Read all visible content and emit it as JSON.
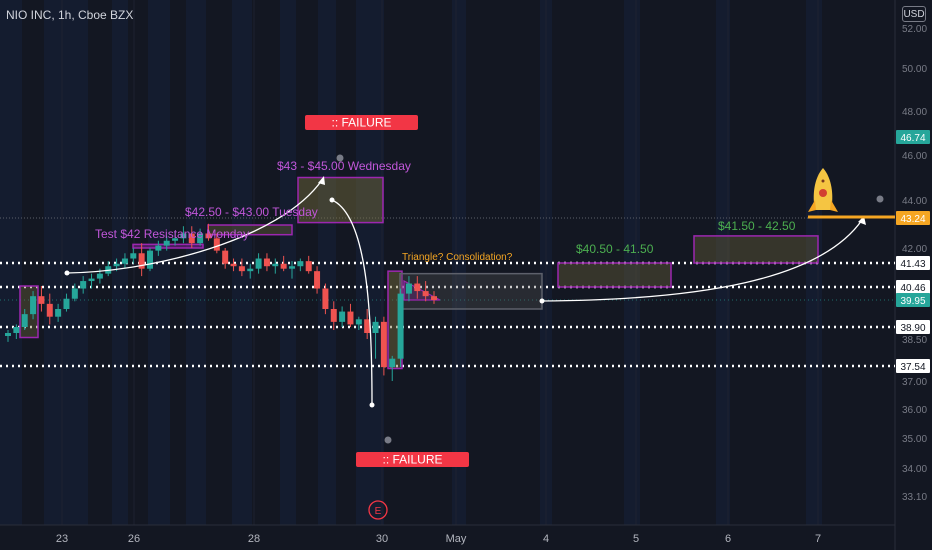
{
  "header": {
    "symbol_title": "NIO INC, 1h, Cboe BZX"
  },
  "currency_button": "USD",
  "colors": {
    "up": "#26a69a",
    "down": "#ef5350",
    "purple": "#9c27b0",
    "orange": "#f5a623",
    "failure": "#f23645"
  },
  "annotations": {
    "failure_label": ":: FAILURE",
    "resistance_monday": "Test $42 Resistance Monday",
    "tuesday_target": "$42.50 - $43.00 Tuesday",
    "wednesday_target": "$43 - $45.00 Wednesday",
    "triangle_note": "Triangle? Consolidation?",
    "zone_1": "$40.50 - 41.50",
    "zone_2": "$41.50 - 42.50",
    "earnings_marker": "E",
    "rocket_icon": "rocket-icon"
  },
  "chart_data": {
    "type": "candlestick",
    "symbol": "NIO INC",
    "interval": "1h",
    "exchange": "Cboe BZX",
    "currency": "USD",
    "ylim": [
      32.5,
      52.0
    ],
    "x_ticks": [
      "23",
      "26",
      "28",
      "30",
      "May",
      "4",
      "5",
      "6",
      "7"
    ],
    "y_ticks": [
      "52.00",
      "50.00",
      "48.00",
      "46.00",
      "44.00",
      "42.00",
      "38.50",
      "37.00",
      "36.00",
      "35.00",
      "34.00",
      "33.10"
    ],
    "price_labels": [
      {
        "label": "46.74",
        "value": 46.74,
        "color": "#26a69a"
      },
      {
        "label": "43.24",
        "value": 43.24,
        "color": "#f5a623"
      },
      {
        "label": "41.43",
        "value": 41.43,
        "color": "#ffffff"
      },
      {
        "label": "40.46",
        "value": 40.46,
        "color": "#ffffff"
      },
      {
        "label": "39.95",
        "value": 39.95,
        "color": "#26a69a"
      },
      {
        "label": "38.90",
        "value": 38.9,
        "color": "#ffffff"
      },
      {
        "label": "37.54",
        "value": 37.54,
        "color": "#ffffff"
      }
    ],
    "horizontal_levels": [
      41.43,
      40.46,
      38.9,
      37.54
    ],
    "target_level": 43.24,
    "candles": [
      [
        38.6,
        38.8,
        38.4,
        38.7
      ],
      [
        38.7,
        39.0,
        38.5,
        38.9
      ],
      [
        38.9,
        39.6,
        38.8,
        39.4
      ],
      [
        39.4,
        40.3,
        39.2,
        40.1
      ],
      [
        40.1,
        40.5,
        39.5,
        39.8
      ],
      [
        39.8,
        40.2,
        39.0,
        39.3
      ],
      [
        39.3,
        39.8,
        39.1,
        39.6
      ],
      [
        39.6,
        40.2,
        39.5,
        40.0
      ],
      [
        40.0,
        40.6,
        39.9,
        40.4
      ],
      [
        40.4,
        40.9,
        40.2,
        40.7
      ],
      [
        40.7,
        41.0,
        40.4,
        40.8
      ],
      [
        40.8,
        41.2,
        40.6,
        41.0
      ],
      [
        41.0,
        41.5,
        40.9,
        41.3
      ],
      [
        41.3,
        41.6,
        41.1,
        41.4
      ],
      [
        41.4,
        41.8,
        41.2,
        41.6
      ],
      [
        41.6,
        42.0,
        41.4,
        41.8
      ],
      [
        41.8,
        42.2,
        40.9,
        41.2
      ],
      [
        41.2,
        42.0,
        41.1,
        41.9
      ],
      [
        41.9,
        42.3,
        41.7,
        42.1
      ],
      [
        42.1,
        42.5,
        41.9,
        42.3
      ],
      [
        42.3,
        42.7,
        42.1,
        42.4
      ],
      [
        42.4,
        42.9,
        42.2,
        42.6
      ],
      [
        42.6,
        42.9,
        42.0,
        42.2
      ],
      [
        42.2,
        42.8,
        42.1,
        42.6
      ],
      [
        42.6,
        43.0,
        42.3,
        42.4
      ],
      [
        42.4,
        42.6,
        41.8,
        41.9
      ],
      [
        41.9,
        42.0,
        41.2,
        41.4
      ],
      [
        41.4,
        41.6,
        41.1,
        41.3
      ],
      [
        41.3,
        41.6,
        40.9,
        41.1
      ],
      [
        41.1,
        41.4,
        40.8,
        41.2
      ],
      [
        41.2,
        41.8,
        41.0,
        41.6
      ],
      [
        41.6,
        41.8,
        41.1,
        41.3
      ],
      [
        41.3,
        41.6,
        41.0,
        41.4
      ],
      [
        41.4,
        41.7,
        41.1,
        41.2
      ],
      [
        41.2,
        41.5,
        40.8,
        41.3
      ],
      [
        41.3,
        41.6,
        41.1,
        41.5
      ],
      [
        41.5,
        41.7,
        41.0,
        41.1
      ],
      [
        41.1,
        41.3,
        40.2,
        40.4
      ],
      [
        40.4,
        40.6,
        39.4,
        39.6
      ],
      [
        39.6,
        39.9,
        38.8,
        39.1
      ],
      [
        39.1,
        39.7,
        38.9,
        39.5
      ],
      [
        39.5,
        39.8,
        38.9,
        39.0
      ],
      [
        39.0,
        39.3,
        38.8,
        39.2
      ],
      [
        39.2,
        39.6,
        38.5,
        38.7
      ],
      [
        38.7,
        39.3,
        37.8,
        39.1
      ],
      [
        39.1,
        39.3,
        37.2,
        37.5
      ],
      [
        37.5,
        37.9,
        37.0,
        37.8
      ],
      [
        37.8,
        40.4,
        37.5,
        40.2
      ],
      [
        40.2,
        40.9,
        39.9,
        40.6
      ],
      [
        40.6,
        40.9,
        40.0,
        40.3
      ],
      [
        40.3,
        40.7,
        39.9,
        40.1
      ],
      [
        40.1,
        40.3,
        39.8,
        39.95
      ]
    ]
  }
}
